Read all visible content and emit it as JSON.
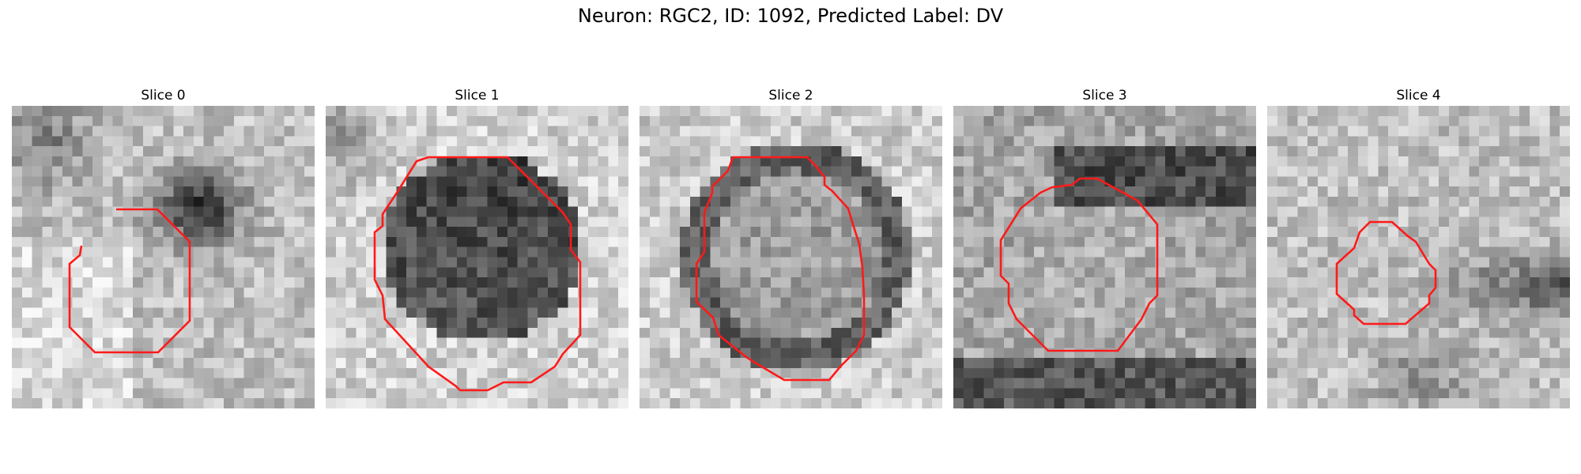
{
  "figure": {
    "title": "Neuron: RGC2, ID: 1092, Predicted Label: DV"
  },
  "colors": {
    "contour": "#ff1a1a",
    "background": "#ffffff"
  },
  "slices": [
    {
      "title": "Slice 0",
      "dark_center": [
        0.55,
        0.33
      ],
      "contour_color": "#ff1a1a"
    },
    {
      "title": "Slice 1",
      "dark_center": [
        0.5,
        0.45
      ],
      "contour_color": "#ff1a1a"
    },
    {
      "title": "Slice 2",
      "dark_center": [
        0.5,
        0.5
      ],
      "contour_color": "#ff1a1a"
    },
    {
      "title": "Slice 3",
      "dark_center": [
        0.5,
        0.2
      ],
      "contour_color": "#ff1a1a"
    },
    {
      "title": "Slice 4",
      "dark_center": [
        0.75,
        0.58
      ],
      "contour_color": "#ff1a1a"
    }
  ]
}
